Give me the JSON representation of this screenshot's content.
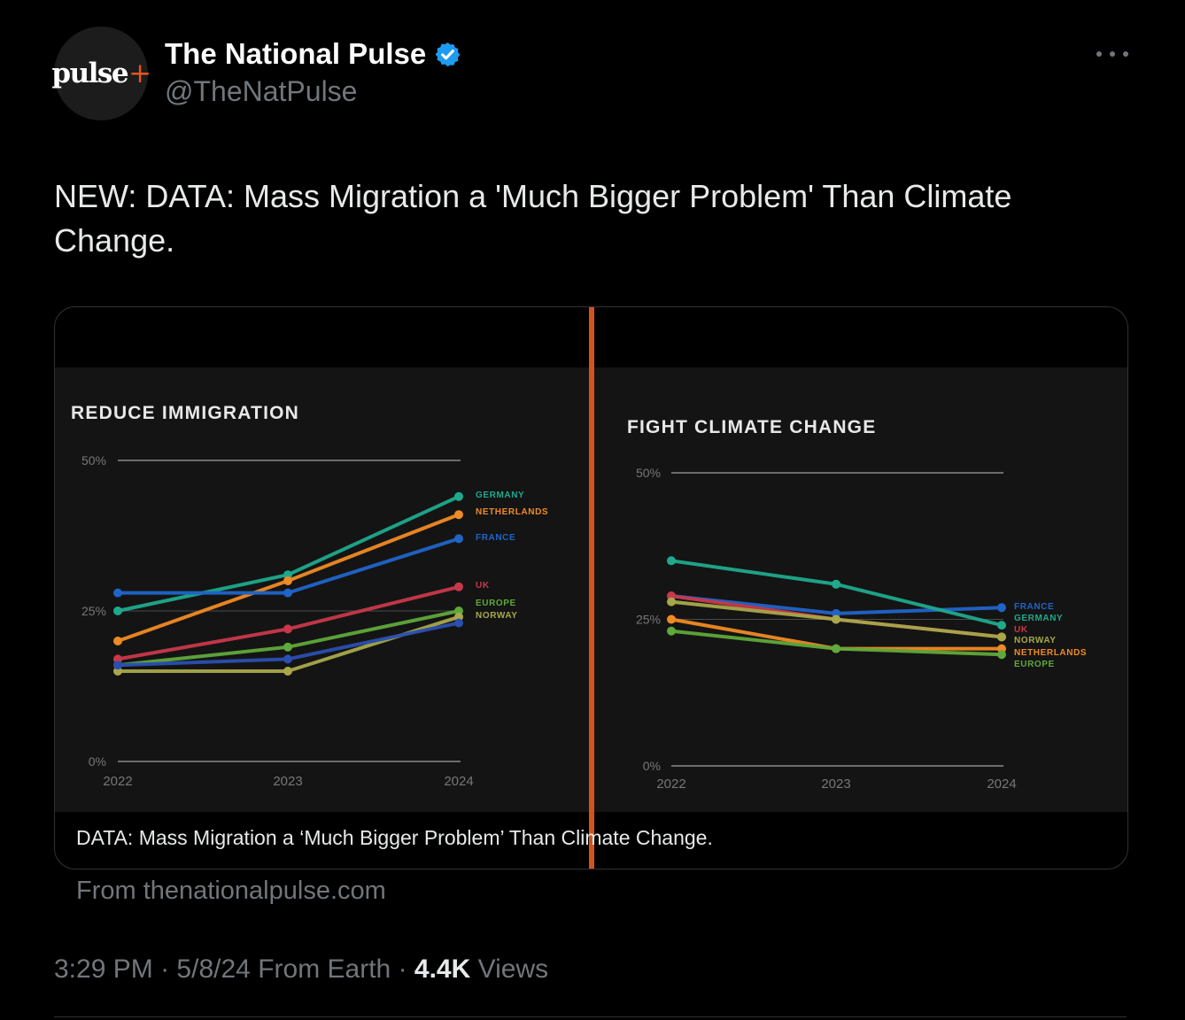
{
  "tweet": {
    "avatar_text": "pulse",
    "avatar_plus": "+",
    "display_name": "The National Pulse",
    "handle": "@TheNatPulse",
    "text": "NEW: DATA: Mass Migration a 'Much Bigger Problem' Than Climate Change.",
    "card_caption": "DATA: Mass Migration a ‘Much Bigger Problem’ Than Climate Change.",
    "card_source": "From thenationalpulse.com",
    "time": "3:29 PM",
    "date": "5/8/24",
    "client": "From Earth",
    "views_count": "4.4K",
    "views_label": "Views",
    "separator": "·"
  },
  "colors": {
    "background": "#000000",
    "accent_orange": "#d4531c",
    "verified_blue": "#1d9bf0",
    "muted": "#71767b"
  },
  "chart_data": [
    {
      "type": "line",
      "title": "REDUCE IMMIGRATION",
      "x": [
        "2022",
        "2023",
        "2024"
      ],
      "ylim": [
        0,
        50
      ],
      "yticks": [
        "0%",
        "25%",
        "50%"
      ],
      "series": [
        {
          "name": "GERMANY",
          "color": "#1fa98c",
          "values": [
            25,
            31,
            44
          ]
        },
        {
          "name": "NETHERLANDS",
          "color": "#f08a24",
          "values": [
            20,
            30,
            41
          ]
        },
        {
          "name": "FRANCE",
          "color": "#2064c8",
          "values": [
            28,
            28,
            37
          ]
        },
        {
          "name": "UK",
          "color": "#c8384a",
          "values": [
            17,
            22,
            29
          ]
        },
        {
          "name": "EUROPE",
          "color": "#5fa83a",
          "values": [
            16,
            19,
            25
          ]
        },
        {
          "name": "NORWAY",
          "color": "#a8a84a",
          "values": [
            15,
            15,
            24
          ]
        },
        {
          "name": "",
          "color": "#2a4fb0",
          "values": [
            16,
            17,
            23
          ]
        }
      ]
    },
    {
      "type": "line",
      "title": "FIGHT CLIMATE CHANGE",
      "x": [
        "2022",
        "2023",
        "2024"
      ],
      "ylim": [
        0,
        50
      ],
      "yticks": [
        "0%",
        "25%",
        "50%"
      ],
      "series": [
        {
          "name": "FRANCE",
          "color": "#2064c8",
          "values": [
            29,
            26,
            27
          ]
        },
        {
          "name": "GERMANY",
          "color": "#1fa98c",
          "values": [
            35,
            31,
            24
          ]
        },
        {
          "name": "UK",
          "color": "#c8384a",
          "values": [
            29,
            25,
            22
          ]
        },
        {
          "name": "NORWAY",
          "color": "#a8a84a",
          "values": [
            28,
            25,
            22
          ]
        },
        {
          "name": "NETHERLANDS",
          "color": "#f08a24",
          "values": [
            25,
            20,
            20
          ]
        },
        {
          "name": "EUROPE",
          "color": "#5fa83a",
          "values": [
            23,
            20,
            19
          ]
        }
      ]
    }
  ]
}
